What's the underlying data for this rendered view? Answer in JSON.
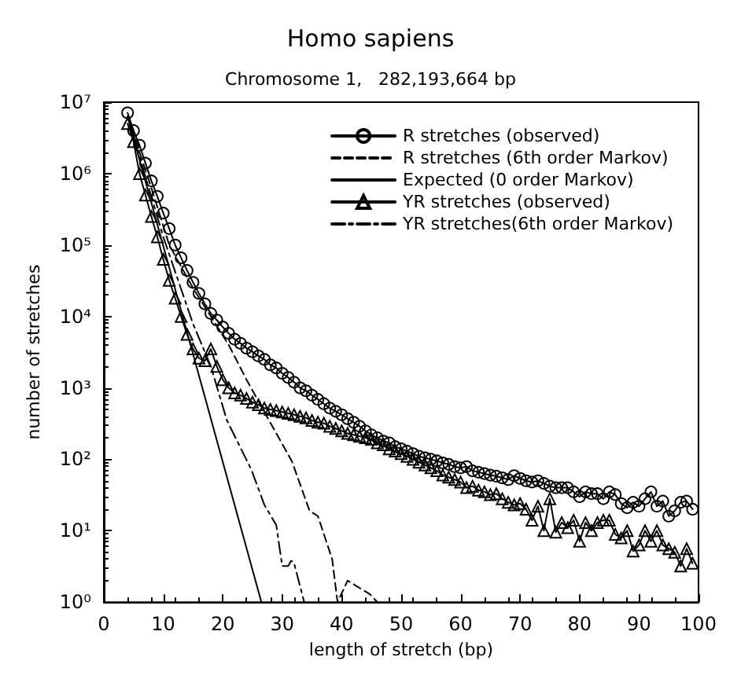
{
  "chart_data": {
    "type": "line",
    "title": "Homo sapiens",
    "subtitle": "Chromosome 1,   282,193,664 bp",
    "xlabel": "length of stretch (bp)",
    "ylabel": "number of stretches",
    "x": [
      4,
      5,
      6,
      7,
      8,
      9,
      10,
      11,
      12,
      13,
      14,
      15,
      16,
      17,
      18,
      19,
      20,
      21,
      22,
      23,
      24,
      25,
      26,
      27,
      28,
      29,
      30,
      31,
      32,
      33,
      34,
      35,
      36,
      37,
      38,
      39,
      40,
      41,
      42,
      43,
      44,
      45,
      46,
      47,
      48,
      49,
      50,
      51,
      52,
      53,
      54,
      55,
      56,
      57,
      58,
      59,
      60,
      61,
      62,
      63,
      64,
      65,
      66,
      67,
      68,
      69,
      70,
      71,
      72,
      73,
      74,
      75,
      76,
      77,
      78,
      79,
      80,
      81,
      82,
      83,
      84,
      85,
      86,
      87,
      88,
      89,
      90,
      91,
      92,
      93,
      94,
      95,
      96,
      97,
      98,
      99
    ],
    "series": [
      {
        "name": "R stretches (observed)",
        "color": "#000000",
        "marker": "circle",
        "line_style": "solid",
        "values": [
          7100000,
          4000000,
          2500000,
          1400000,
          790000,
          480000,
          280000,
          170000,
          100000,
          66000,
          44000,
          30000,
          21000,
          15000,
          11000,
          8900,
          7100,
          5800,
          4800,
          4200,
          3600,
          3200,
          2800,
          2500,
          2100,
          1900,
          1600,
          1400,
          1200,
          1000,
          910,
          790,
          690,
          600,
          520,
          470,
          420,
          370,
          330,
          290,
          250,
          220,
          200,
          180,
          170,
          150,
          140,
          130,
          120,
          110,
          105,
          100,
          95,
          89,
          85,
          79,
          76,
          79,
          69,
          66,
          63,
          60,
          58,
          55,
          52,
          59,
          54,
          50,
          48,
          50,
          46,
          42,
          40,
          40,
          40,
          35,
          30,
          35,
          33,
          33,
          28,
          35,
          32,
          24,
          21,
          25,
          22,
          28,
          35,
          22,
          26,
          16,
          19,
          25,
          26,
          20
        ]
      },
      {
        "name": "R stretches (6th order Markov)",
        "color": "#000000",
        "marker": "none",
        "line_style": "dashed",
        "x": [
          4,
          8,
          11,
          15,
          18,
          21,
          24,
          27.4,
          31.6,
          34.6,
          36,
          38.4,
          39.3,
          41,
          44.7,
          46
        ],
        "values": [
          6300000,
          630000,
          100000,
          25000,
          10000,
          4000,
          1300,
          400,
          95,
          19,
          16,
          4,
          1,
          2,
          1.3,
          1
        ]
      },
      {
        "name": "Expected (0 order Markov)",
        "color": "#000000",
        "marker": "none",
        "line_style": "solid",
        "x": [
          4,
          26.5
        ],
        "values": [
          6300000,
          1
        ]
      },
      {
        "name": "YR stretches (observed)",
        "color": "#000000",
        "marker": "triangle",
        "line_style": "solid",
        "values": [
          5000000,
          2800000,
          1000000,
          500000,
          250000,
          130000,
          63000,
          32000,
          18000,
          10000,
          5600,
          3500,
          2600,
          2400,
          3500,
          2000,
          1300,
          1000,
          850,
          790,
          710,
          630,
          580,
          520,
          500,
          480,
          460,
          440,
          420,
          400,
          380,
          350,
          330,
          320,
          290,
          270,
          250,
          230,
          220,
          210,
          200,
          190,
          170,
          160,
          140,
          130,
          120,
          110,
          100,
          91,
          83,
          76,
          69,
          60,
          56,
          52,
          48,
          40,
          42,
          37,
          35,
          32,
          33,
          28,
          25,
          23,
          24,
          20,
          14,
          22,
          10,
          28,
          9.5,
          13,
          11,
          14,
          7.1,
          13,
          10,
          13,
          14,
          14,
          8.9,
          7.9,
          10,
          5.2,
          6.3,
          10,
          7.1,
          10,
          6.3,
          5.6,
          5,
          3.2,
          5.6,
          3.5
        ]
      },
      {
        "name": "YR stretches(6th order Markov)",
        "color": "#000000",
        "marker": "none",
        "line_style": "dashdot",
        "x": [
          4,
          10,
          15,
          18,
          20.7,
          24.8,
          27,
          29,
          30,
          31,
          31.5,
          32,
          33.7
        ],
        "values": [
          6300000,
          130000,
          7900,
          2000,
          350,
          72,
          23,
          12,
          3.2,
          3.2,
          3.8,
          3.5,
          1
        ]
      }
    ],
    "xlim": [
      0,
      100
    ],
    "xticks": [
      0,
      10,
      20,
      30,
      40,
      50,
      60,
      70,
      80,
      90,
      100
    ],
    "ylim": [
      1,
      10000000
    ],
    "log": true,
    "yticks": [
      {
        "value": 1,
        "label": "10⁰"
      },
      {
        "value": 10,
        "label": "10¹"
      },
      {
        "value": 100,
        "label": "10²"
      },
      {
        "value": 1000,
        "label": "10³"
      },
      {
        "value": 10000,
        "label": "10⁴"
      },
      {
        "value": 100000,
        "label": "10⁵"
      },
      {
        "value": 1000000,
        "label": "10⁶"
      },
      {
        "value": 10000000,
        "label": "10⁷"
      }
    ],
    "grid": false,
    "legend": "top right"
  }
}
